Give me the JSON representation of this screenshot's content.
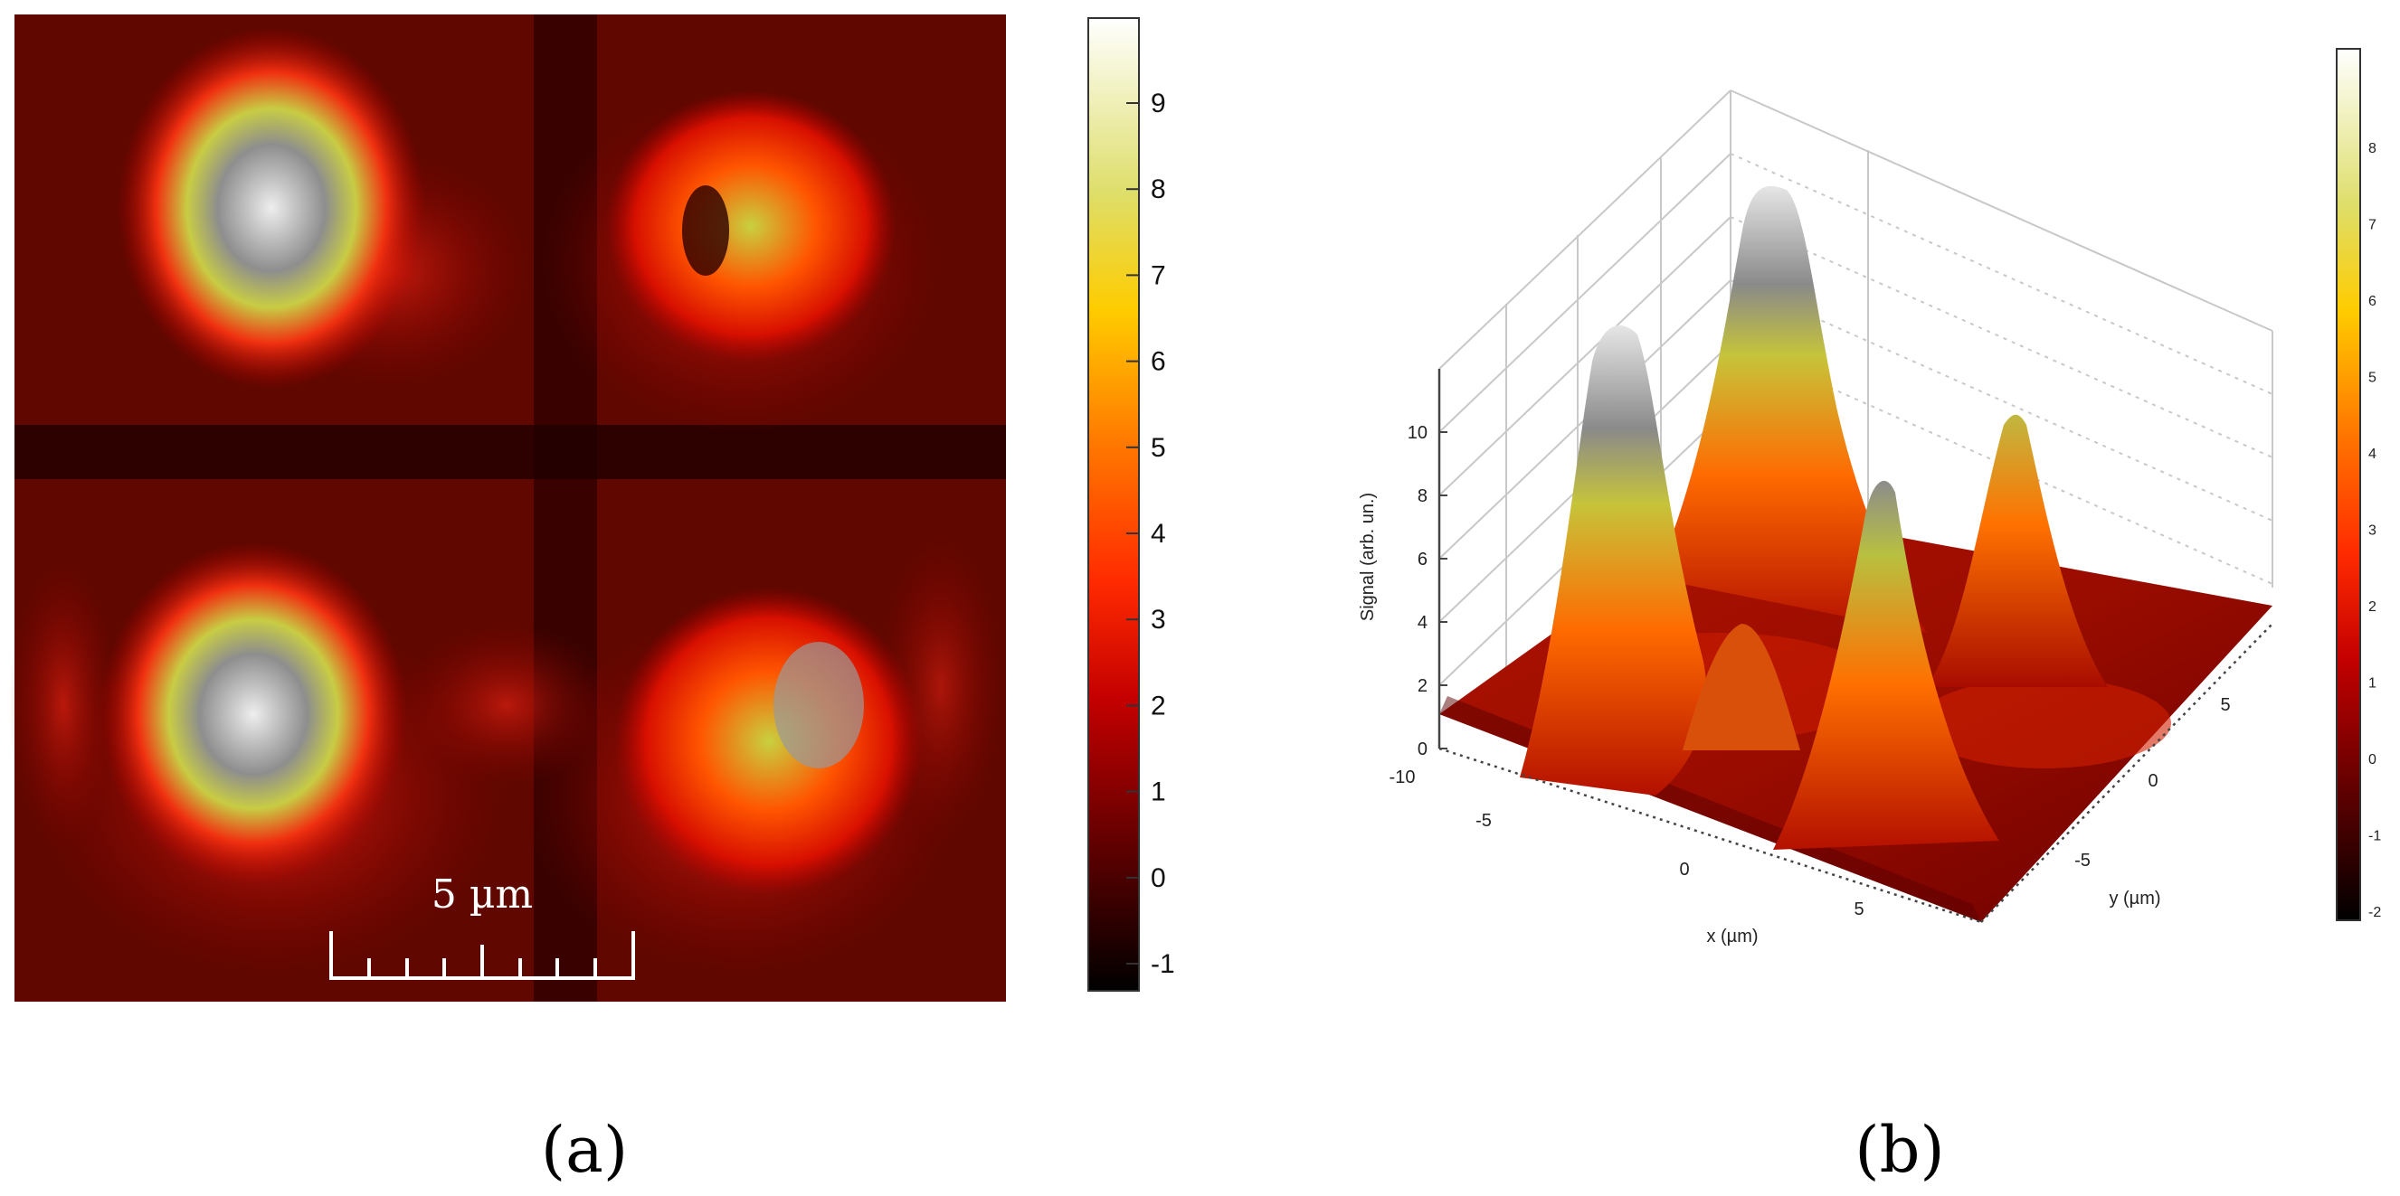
{
  "panel_a": {
    "caption": "(a)",
    "scalebar_label": "5 µm",
    "colorbar": {
      "ticks": [
        "9",
        "8",
        "7",
        "6",
        "5",
        "4",
        "3",
        "2",
        "1",
        "0",
        "-1"
      ],
      "range": [
        -1,
        10
      ],
      "colors": [
        "#000000",
        "#5a0000",
        "#c40000",
        "#ff2a00",
        "#ff7700",
        "#ffcc00",
        "#dede6a",
        "#ffffff"
      ]
    }
  },
  "panel_b": {
    "caption": "(b)",
    "z_axis_label": "Signal (arb. un.)",
    "x_axis_label": "x (µm)",
    "y_axis_label": "y (µm)",
    "z_ticks": [
      "0",
      "2",
      "4",
      "6",
      "8",
      "10"
    ],
    "x_ticks": [
      "-10",
      "-5",
      "0",
      "5"
    ],
    "y_ticks": [
      "5",
      "0",
      "-5"
    ],
    "colorbar": {
      "ticks": [
        "8",
        "7",
        "6",
        "5",
        "4",
        "3",
        "2",
        "1",
        "0",
        "-1",
        "-2"
      ],
      "range": [
        -2.2,
        9
      ]
    }
  }
}
